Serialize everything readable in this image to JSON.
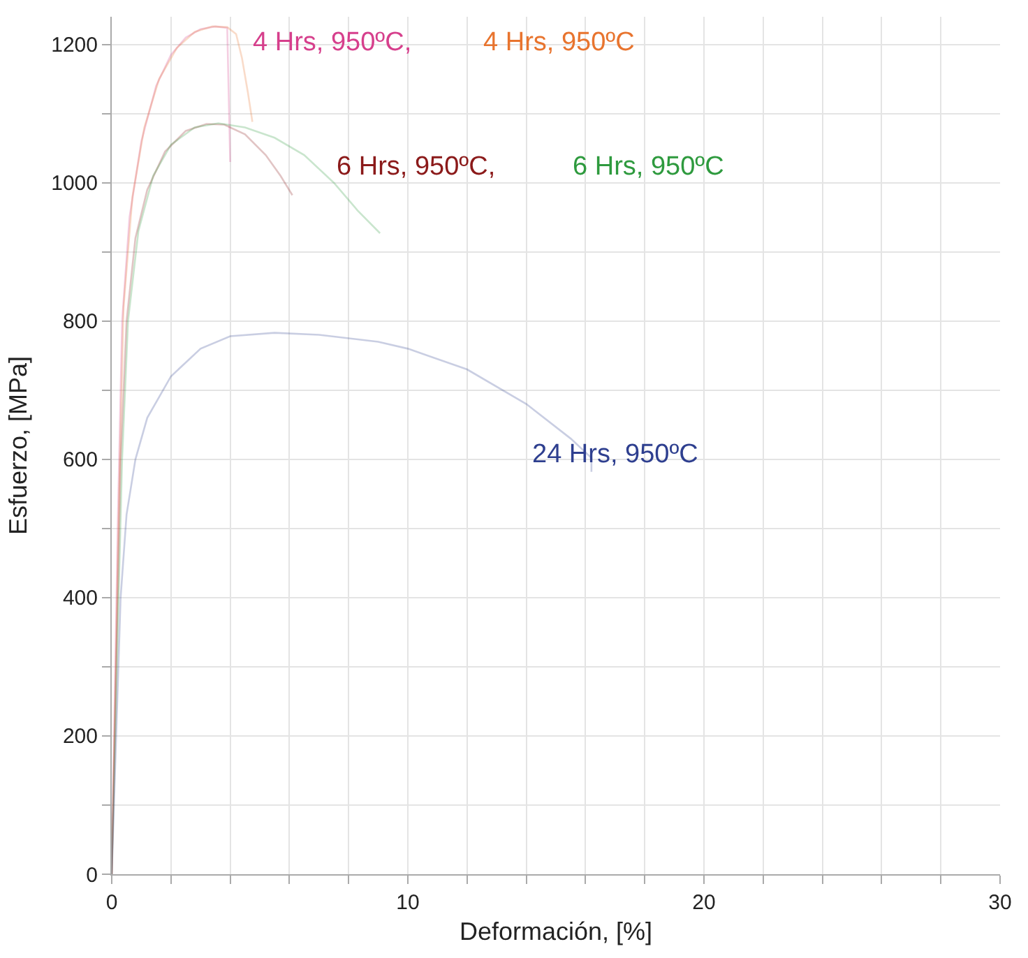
{
  "chart_data": {
    "type": "line",
    "xlabel": "Deformación, [%]",
    "ylabel": "Esfuerzo, [MPa]",
    "xlim": [
      0,
      30
    ],
    "ylim": [
      0,
      1240
    ],
    "xticks": [
      0,
      {
        "value": 2,
        "label": null
      },
      {
        "value": 4,
        "label": null
      },
      {
        "value": 6,
        "label": null
      },
      {
        "value": 8,
        "label": null
      },
      10,
      {
        "value": 12,
        "label": null
      },
      {
        "value": 14,
        "label": null
      },
      {
        "value": 16,
        "label": null
      },
      {
        "value": 18,
        "label": null
      },
      20,
      {
        "value": 22,
        "label": null
      },
      {
        "value": 24,
        "label": null
      },
      {
        "value": 26,
        "label": null
      },
      {
        "value": 28,
        "label": null
      },
      30
    ],
    "yticks": [
      0,
      {
        "value": 100,
        "label": null
      },
      200,
      {
        "value": 300,
        "label": null
      },
      400,
      {
        "value": 500,
        "label": null
      },
      600,
      {
        "value": 700,
        "label": null
      },
      800,
      {
        "value": 900,
        "label": null
      },
      1000,
      {
        "value": 1100,
        "label": null
      },
      1200
    ],
    "grid": true,
    "legend": false,
    "marker": "none",
    "line_style": "solid",
    "series": [
      {
        "name": "4 Hrs, 950ºC,",
        "color": "#d63f8c",
        "x": [
          0,
          0.2,
          0.35,
          0.6,
          1,
          1.5,
          2,
          2.5,
          3,
          3.5,
          3.9,
          4.0
        ],
        "values": [
          0,
          500,
          800,
          950,
          1060,
          1140,
          1185,
          1210,
          1222,
          1226,
          1224,
          1030
        ]
      },
      {
        "name": "4 Hrs, 950ºC",
        "color": "#e8742e",
        "x": [
          0,
          0.25,
          0.4,
          0.7,
          1.1,
          1.6,
          2.2,
          2.8,
          3.4,
          3.9,
          4.2,
          4.4,
          4.6,
          4.75
        ],
        "values": [
          0,
          550,
          820,
          980,
          1080,
          1150,
          1195,
          1218,
          1226,
          1225,
          1215,
          1180,
          1130,
          1088
        ]
      },
      {
        "name": "6 Hrs, 950ºC,",
        "color": "#8b1a1a",
        "x": [
          0,
          0.3,
          0.5,
          0.8,
          1.2,
          1.8,
          2.5,
          3.2,
          3.8,
          4.5,
          5.2,
          5.7,
          6.1
        ],
        "values": [
          0,
          600,
          800,
          920,
          990,
          1045,
          1075,
          1085,
          1084,
          1070,
          1040,
          1010,
          982
        ]
      },
      {
        "name": "6 Hrs, 950ºC",
        "color": "#2e9a3e",
        "x": [
          0,
          0.35,
          0.55,
          0.9,
          1.4,
          2,
          2.8,
          3.6,
          4.5,
          5.5,
          6.5,
          7.5,
          8.3,
          9.06
        ],
        "values": [
          0,
          600,
          800,
          930,
          1010,
          1055,
          1080,
          1086,
          1080,
          1065,
          1040,
          1000,
          960,
          927
        ]
      },
      {
        "name": "24 Hrs, 950ºC",
        "color": "#2e3f8f",
        "x": [
          0,
          0.3,
          0.5,
          0.8,
          1.2,
          2,
          3,
          4,
          5.5,
          7,
          9,
          10,
          12,
          14,
          15.5,
          16.2,
          16.2
        ],
        "values": [
          0,
          400,
          520,
          600,
          660,
          720,
          760,
          778,
          783,
          780,
          770,
          760,
          730,
          680,
          630,
          602,
          582
        ]
      }
    ]
  }
}
